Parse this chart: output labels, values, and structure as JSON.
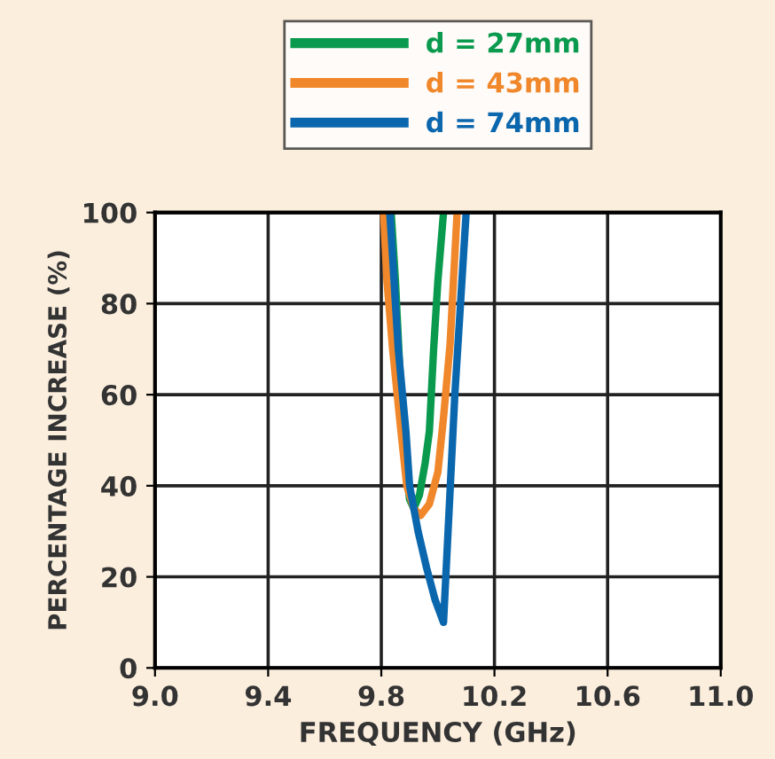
{
  "chart_data": {
    "type": "line",
    "xlabel": "FREQUENCY (GHz)",
    "ylabel": "PERCENTAGE INCREASE (%)",
    "xlim": [
      9.0,
      11.0
    ],
    "xticks": [
      {
        "value": 9.0,
        "label": "9.0"
      },
      {
        "value": 9.4,
        "label": "9.4"
      },
      {
        "value": 9.8,
        "label": "9.8"
      },
      {
        "value": 10.2,
        "label": "10.2"
      },
      {
        "value": 10.6,
        "label": "10.6"
      },
      {
        "value": 11.0,
        "label": "11.0"
      }
    ],
    "ylim": [
      0,
      100
    ],
    "yticks": [
      0,
      20,
      40,
      60,
      80,
      100
    ],
    "grid": true,
    "legend": "top",
    "marker": "none",
    "line_style": "solid",
    "series": [
      {
        "name": "d = 27mm",
        "color": "#0a9a4e",
        "x": [
          9.835,
          9.85,
          9.87,
          9.885,
          9.9,
          9.915,
          9.935,
          9.955,
          9.97,
          9.985,
          10.0,
          10.02
        ],
        "values": [
          100,
          85,
          60,
          45,
          37,
          35,
          38,
          45,
          52,
          70,
          85,
          100
        ]
      },
      {
        "name": "d = 43mm",
        "color": "#f0872a",
        "x": [
          9.808,
          9.82,
          9.84,
          9.866,
          9.89,
          9.915,
          9.939,
          9.97,
          10.0,
          10.02,
          10.043,
          10.068
        ],
        "values": [
          100,
          85,
          70,
          54,
          40,
          35,
          33.5,
          36,
          43,
          55,
          71,
          100
        ]
      },
      {
        "name": "d = 74mm",
        "color": "#0b67ad",
        "x": [
          9.83,
          9.86,
          9.887,
          9.9,
          9.93,
          9.96,
          9.99,
          10.02,
          10.04,
          10.06,
          10.08,
          10.1
        ],
        "values": [
          100,
          70,
          52,
          40,
          30,
          22,
          15,
          10,
          35,
          60,
          80,
          100
        ]
      }
    ]
  }
}
